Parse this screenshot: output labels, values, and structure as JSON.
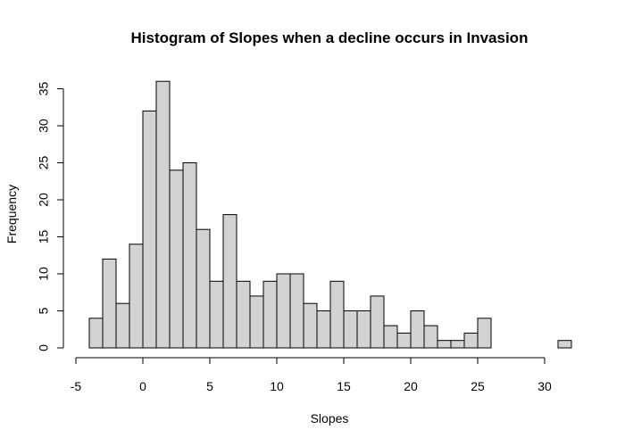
{
  "chart_data": {
    "type": "bar",
    "subtype": "histogram",
    "title": "Histogram of Slopes when a decline occurs in Invasion",
    "xlabel": "Slopes",
    "ylabel": "Frequency",
    "bin_width": 1,
    "bins": [
      {
        "start": -4,
        "end": -3,
        "count": 4
      },
      {
        "start": -3,
        "end": -2,
        "count": 12
      },
      {
        "start": -2,
        "end": -1,
        "count": 6
      },
      {
        "start": -1,
        "end": 0,
        "count": 14
      },
      {
        "start": 0,
        "end": 1,
        "count": 32
      },
      {
        "start": 1,
        "end": 2,
        "count": 36
      },
      {
        "start": 2,
        "end": 3,
        "count": 24
      },
      {
        "start": 3,
        "end": 4,
        "count": 25
      },
      {
        "start": 4,
        "end": 5,
        "count": 16
      },
      {
        "start": 5,
        "end": 6,
        "count": 9
      },
      {
        "start": 6,
        "end": 7,
        "count": 18
      },
      {
        "start": 7,
        "end": 8,
        "count": 9
      },
      {
        "start": 8,
        "end": 9,
        "count": 7
      },
      {
        "start": 9,
        "end": 10,
        "count": 9
      },
      {
        "start": 10,
        "end": 11,
        "count": 10
      },
      {
        "start": 11,
        "end": 12,
        "count": 10
      },
      {
        "start": 12,
        "end": 13,
        "count": 6
      },
      {
        "start": 13,
        "end": 14,
        "count": 5
      },
      {
        "start": 14,
        "end": 15,
        "count": 9
      },
      {
        "start": 15,
        "end": 16,
        "count": 5
      },
      {
        "start": 16,
        "end": 17,
        "count": 5
      },
      {
        "start": 17,
        "end": 18,
        "count": 7
      },
      {
        "start": 18,
        "end": 19,
        "count": 3
      },
      {
        "start": 19,
        "end": 20,
        "count": 2
      },
      {
        "start": 20,
        "end": 21,
        "count": 5
      },
      {
        "start": 21,
        "end": 22,
        "count": 3
      },
      {
        "start": 22,
        "end": 23,
        "count": 1
      },
      {
        "start": 23,
        "end": 24,
        "count": 1
      },
      {
        "start": 24,
        "end": 25,
        "count": 2
      },
      {
        "start": 25,
        "end": 26,
        "count": 4
      },
      {
        "start": 26,
        "end": 27,
        "count": 0
      },
      {
        "start": 27,
        "end": 28,
        "count": 0
      },
      {
        "start": 28,
        "end": 29,
        "count": 0
      },
      {
        "start": 29,
        "end": 30,
        "count": 0
      },
      {
        "start": 30,
        "end": 31,
        "count": 0
      },
      {
        "start": 31,
        "end": 32,
        "count": 1
      }
    ],
    "xlim": [
      -5,
      32
    ],
    "ylim": [
      0,
      37
    ],
    "x_ticks": [
      -5,
      0,
      5,
      10,
      15,
      20,
      25,
      30
    ],
    "x_tick_labels": [
      "-5",
      "0",
      "5",
      "10",
      "15",
      "20",
      "25",
      "30"
    ],
    "y_ticks": [
      0,
      5,
      10,
      15,
      20,
      25,
      30,
      35
    ],
    "y_tick_labels": [
      "0",
      "5",
      "10",
      "15",
      "20",
      "25",
      "30",
      "35"
    ],
    "grid": false,
    "legend": "none",
    "colors": {
      "bar_fill": "#d3d3d3",
      "bar_stroke": "#000000",
      "axis": "#000000",
      "background": "#ffffff"
    }
  }
}
